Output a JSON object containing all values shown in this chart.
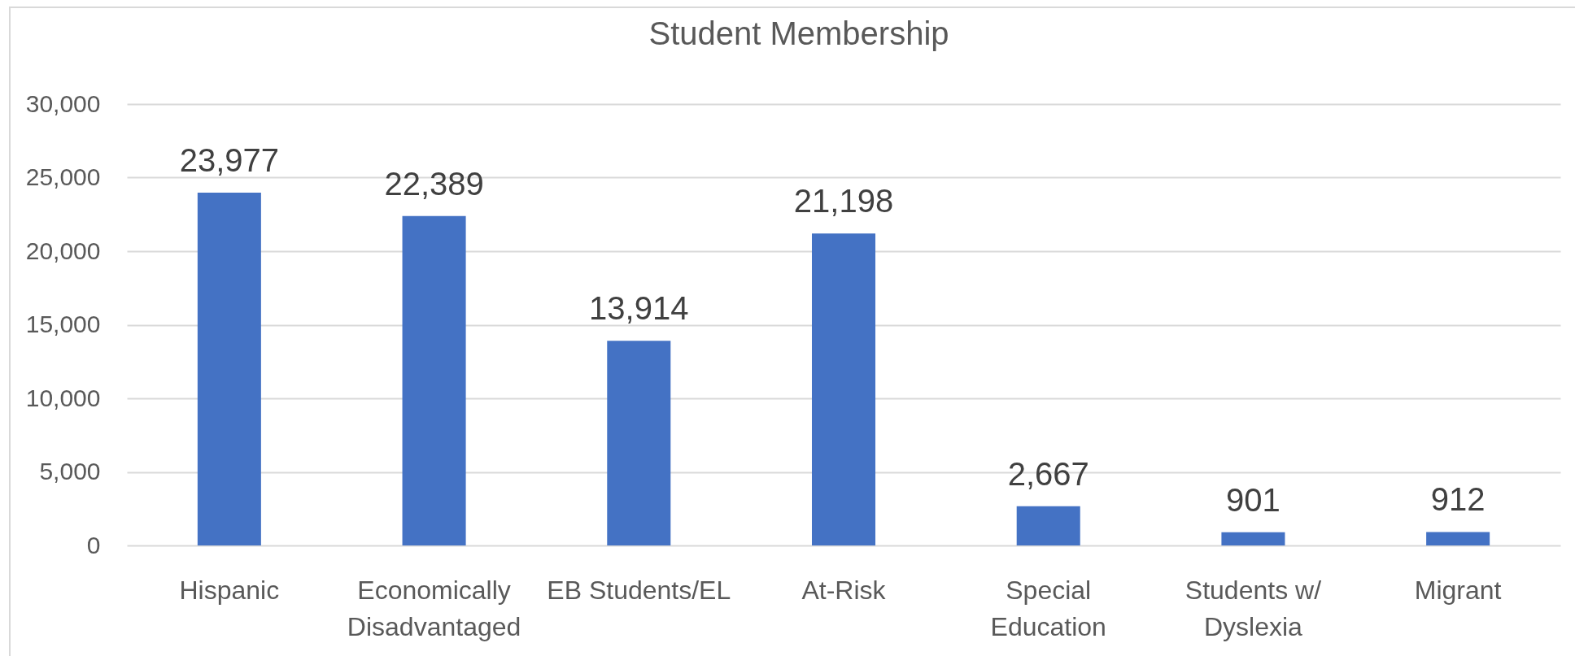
{
  "chart_data": {
    "type": "bar",
    "title": "Student Membership",
    "categories": [
      "Hispanic",
      "Economically Disadvantaged",
      "EB Students/EL",
      "At-Risk",
      "Special Education",
      "Students w/ Dyslexia",
      "Migrant"
    ],
    "values": [
      23977,
      22389,
      13914,
      21198,
      2667,
      901,
      912
    ],
    "color": "#4472c4",
    "value_labels": [
      "23,977",
      "22,389",
      "13,914",
      "21,198",
      "2,667",
      "901",
      "912"
    ],
    "ylim": [
      0,
      30000
    ],
    "yticks": [
      {
        "value": 0,
        "label": "0"
      },
      {
        "value": 5000,
        "label": "5,000"
      },
      {
        "value": 10000,
        "label": "10,000"
      },
      {
        "value": 15000,
        "label": "15,000"
      },
      {
        "value": 20000,
        "label": "20,000"
      },
      {
        "value": 25000,
        "label": "25,000"
      },
      {
        "value": 30000,
        "label": "30,000"
      }
    ],
    "grid": "y"
  }
}
